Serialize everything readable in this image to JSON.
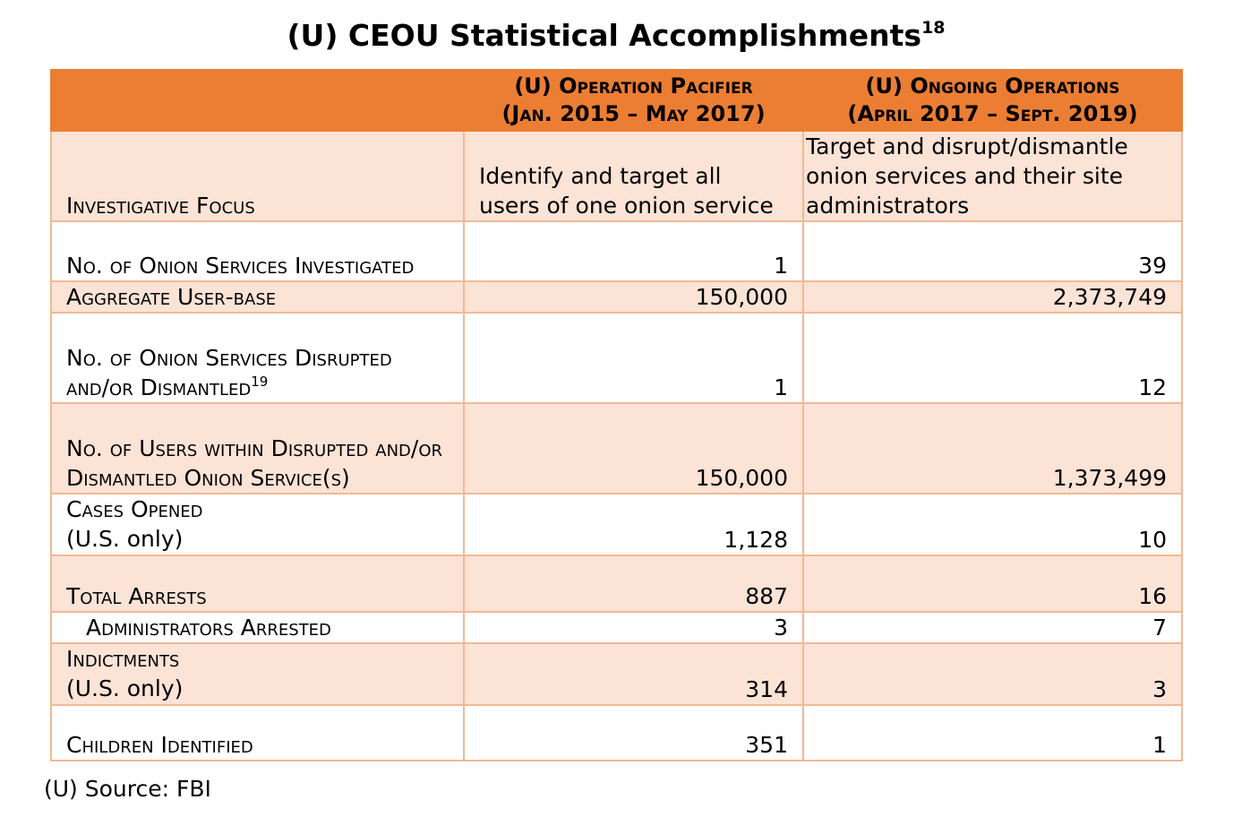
{
  "title": {
    "text": "(U) CEOU Statistical Accomplishments",
    "footnote": "18"
  },
  "table": {
    "headers": [
      "",
      "(U) Operation Pacifier (Jan. 2015 – May 2017)",
      "(U) Ongoing Operations (April 2017 – Sept. 2019)"
    ],
    "header_lines": [
      [
        "(U) Operation Pacifier",
        "(Jan. 2015 – May 2017)"
      ],
      [
        "(U) Ongoing Operations",
        "(April 2017 – Sept. 2019)"
      ]
    ],
    "focus": {
      "label": "Investigative Focus",
      "pacifier": "Identify and target all users of one onion service",
      "ongoing": "Target and disrupt/dismantle onion services and their site administrators"
    },
    "rows": [
      {
        "label": "No. of Onion Services Investigated",
        "pacifier": "1",
        "ongoing": "39"
      },
      {
        "label": "Aggregate User-base",
        "pacifier": "150,000",
        "ongoing": "2,373,749"
      },
      {
        "label": "No. of Onion Services Disrupted and/or Dismantled",
        "footnote": "19",
        "pacifier": "1",
        "ongoing": "12"
      },
      {
        "label": "No. of Users within Disrupted and/or Dismantled Onion Service(s)",
        "pacifier": "150,000",
        "ongoing": "1,373,499"
      },
      {
        "label": "Cases Opened",
        "qualifier": "(U.S. only)",
        "pacifier": "1,128",
        "ongoing": "10"
      },
      {
        "label": "Total Arrests",
        "pacifier": "887",
        "ongoing": "16"
      },
      {
        "label": "Administrators Arrested",
        "pacifier": "3",
        "ongoing": "7"
      },
      {
        "label": "Indictments",
        "qualifier": "(U.S. only)",
        "pacifier": "314",
        "ongoing": "3"
      },
      {
        "label": "Children Identified",
        "pacifier": "351",
        "ongoing": "1"
      }
    ]
  },
  "source": "(U) Source:  FBI",
  "colors": {
    "header_orange": "#ec7e33",
    "row_shade": "#fbe3d6",
    "border": "#f2b894"
  }
}
